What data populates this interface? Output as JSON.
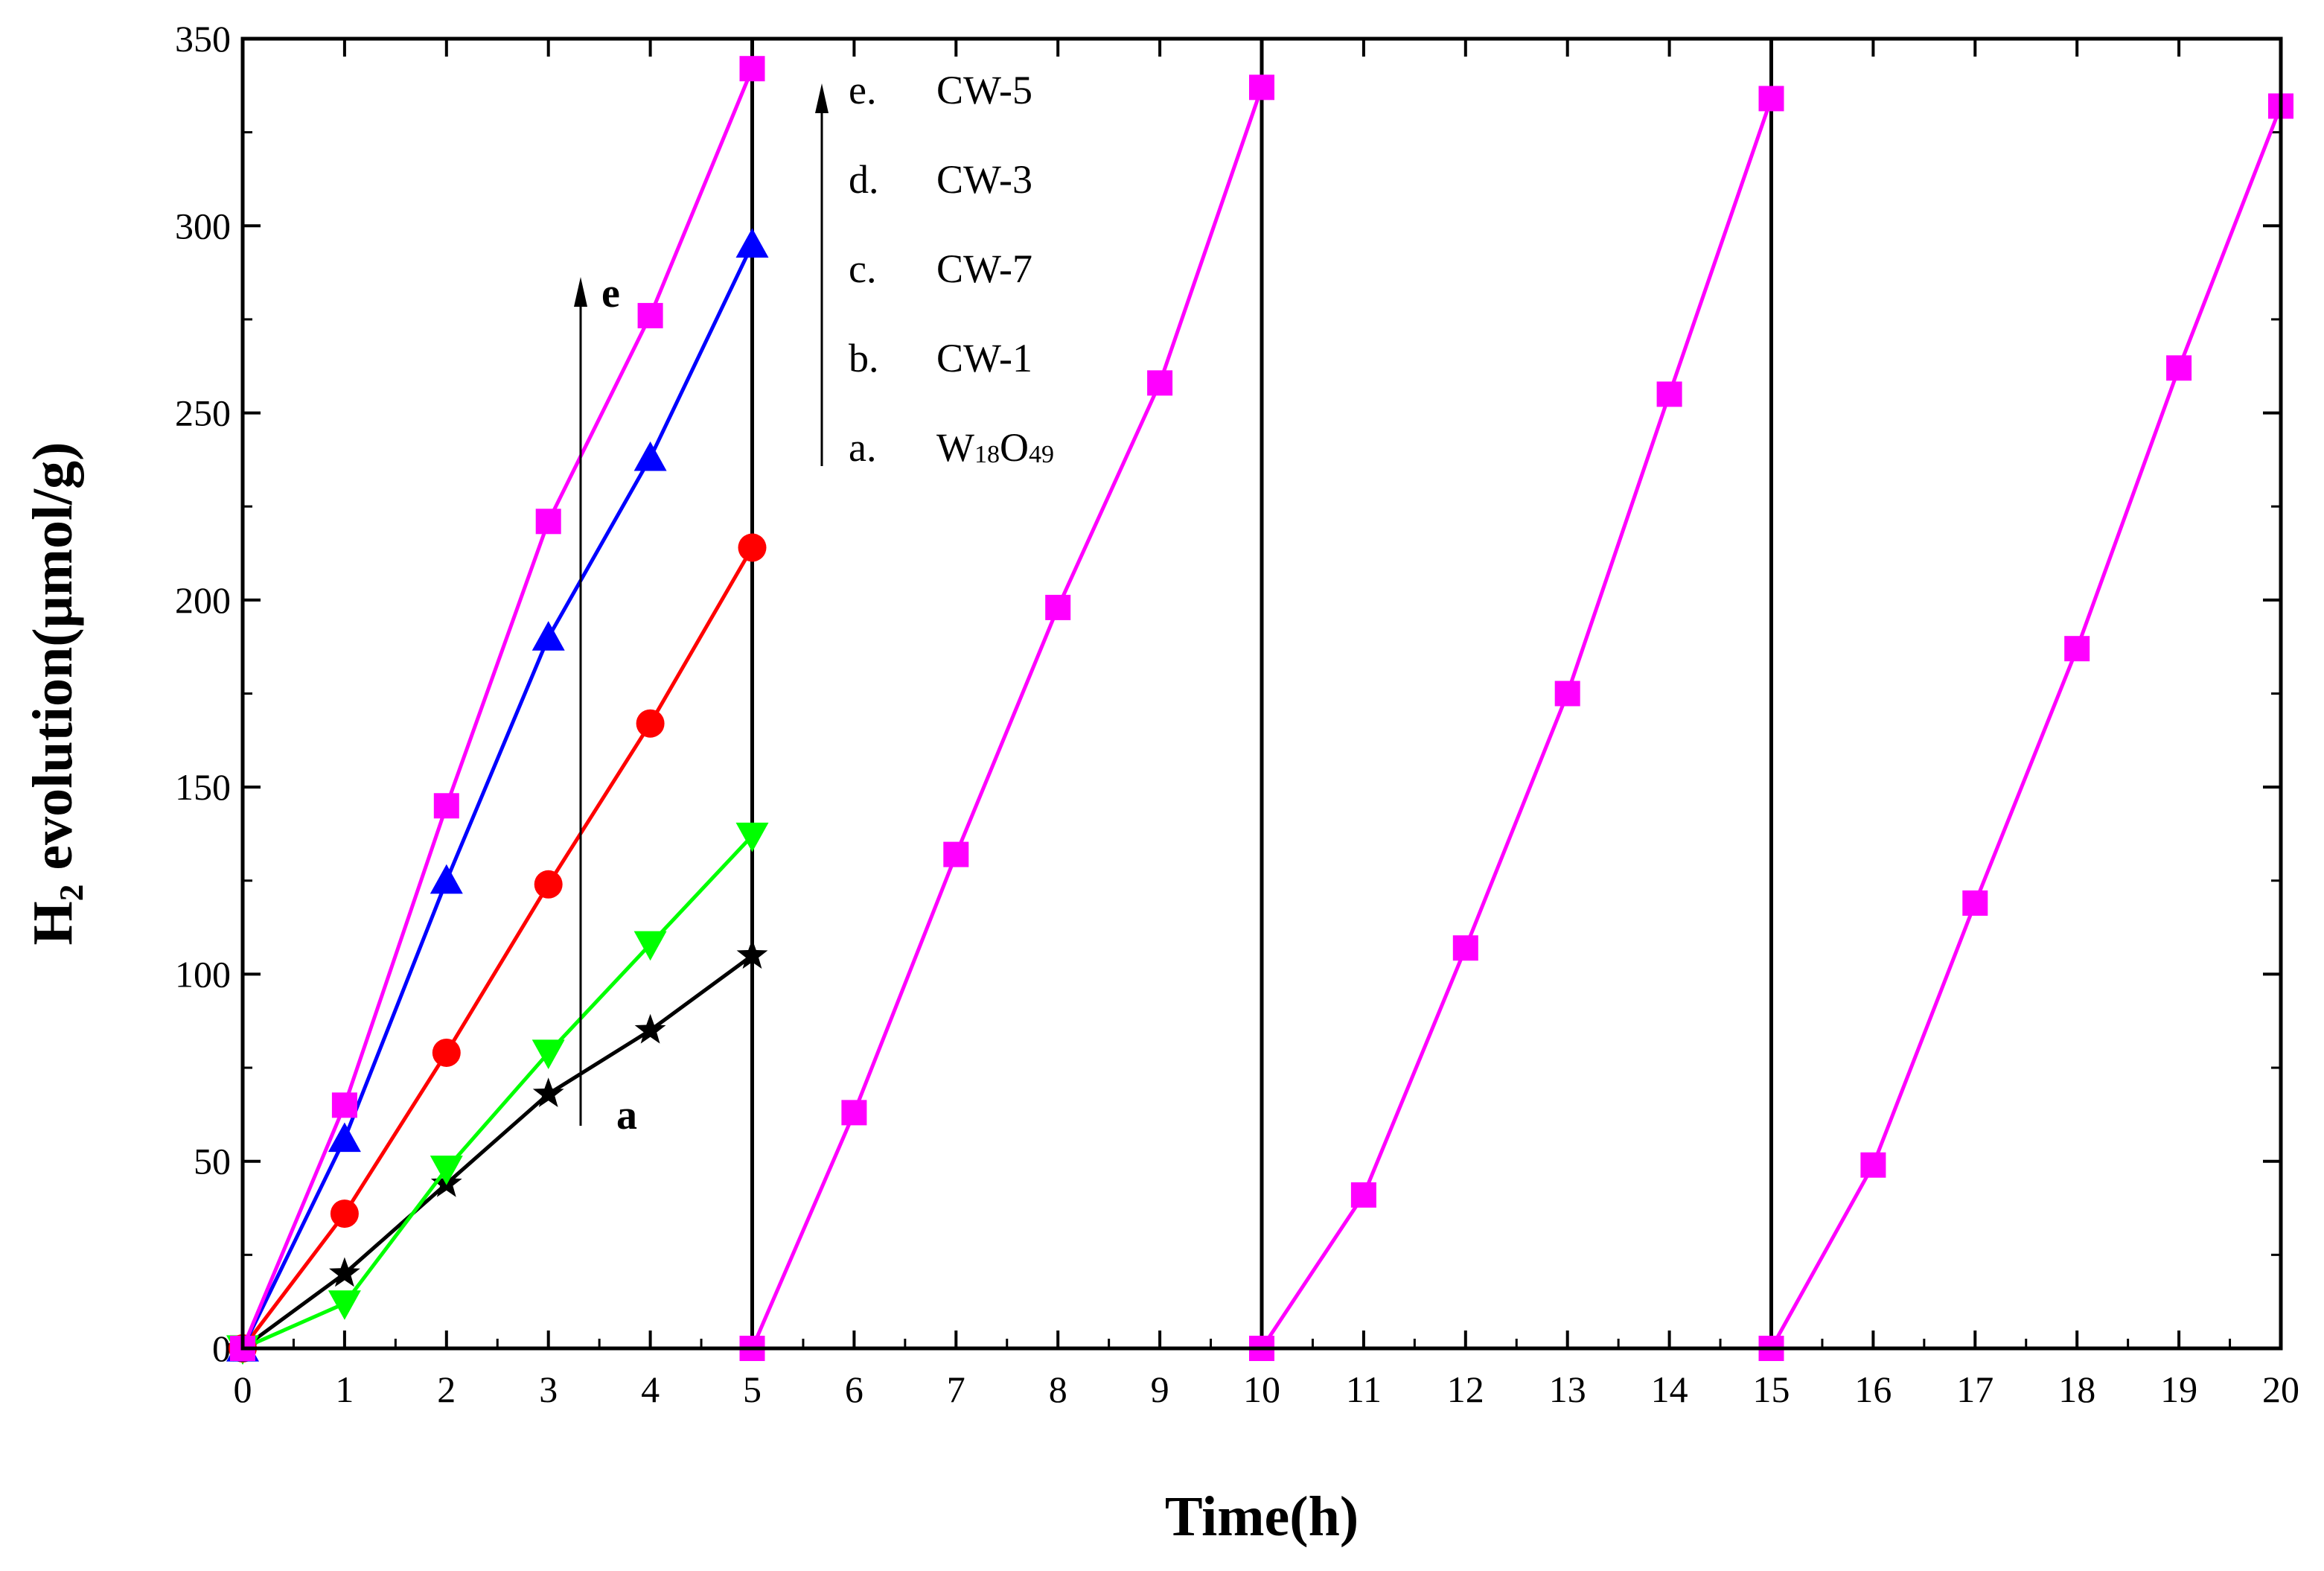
{
  "chart_data": {
    "type": "line",
    "title": "",
    "xlabel": "Time(h)",
    "ylabel": "H₂ evolution(μmol/g)",
    "xlim": [
      0,
      20
    ],
    "ylim": [
      0,
      350
    ],
    "xticks": [
      0,
      1,
      2,
      3,
      4,
      5,
      6,
      7,
      8,
      9,
      10,
      11,
      12,
      13,
      14,
      15,
      16,
      17,
      18,
      19,
      20
    ],
    "yticks": [
      0,
      50,
      100,
      150,
      200,
      250,
      300,
      350
    ],
    "cycle_dividers": [
      5,
      10,
      15
    ],
    "series": [
      {
        "key": "a",
        "name": "W18O49",
        "color": "#000000",
        "marker": "star",
        "segments": [
          {
            "x": [
              0,
              1,
              2,
              3,
              4,
              5
            ],
            "y": [
              0,
              20,
              44,
              68,
              85,
              105
            ]
          }
        ]
      },
      {
        "key": "b",
        "name": "CW-1",
        "color": "#00ff00",
        "marker": "triangle-down",
        "segments": [
          {
            "x": [
              0,
              1,
              2,
              3,
              4,
              5
            ],
            "y": [
              0,
              12,
              48,
              79,
              108,
              137
            ]
          }
        ]
      },
      {
        "key": "c",
        "name": "CW-7",
        "color": "#ff0000",
        "marker": "circle",
        "segments": [
          {
            "x": [
              0,
              1,
              2,
              3,
              4,
              5
            ],
            "y": [
              0,
              36,
              79,
              124,
              167,
              214
            ]
          }
        ]
      },
      {
        "key": "d",
        "name": "CW-3",
        "color": "#0000ff",
        "marker": "triangle-up",
        "segments": [
          {
            "x": [
              0,
              1,
              2,
              3,
              4,
              5
            ],
            "y": [
              0,
              56,
              125,
              190,
              238,
              295
            ]
          }
        ]
      },
      {
        "key": "e",
        "name": "CW-5",
        "color": "#ff00ff",
        "marker": "square",
        "segments": [
          {
            "x": [
              0,
              1,
              2,
              3,
              4,
              5
            ],
            "y": [
              0,
              65,
              145,
              221,
              276,
              342
            ]
          },
          {
            "x": [
              5,
              6,
              7,
              8,
              9,
              10
            ],
            "y": [
              0,
              63,
              132,
              198,
              258,
              337
            ]
          },
          {
            "x": [
              10,
              11,
              12,
              13,
              14,
              15
            ],
            "y": [
              0,
              41,
              107,
              175,
              255,
              334
            ]
          },
          {
            "x": [
              15,
              16,
              17,
              18,
              19,
              20
            ],
            "y": [
              0,
              49,
              119,
              187,
              262,
              332
            ]
          }
        ]
      }
    ],
    "legend": {
      "placement": "top, right of first cycle",
      "entries": [
        {
          "prefix": "e.",
          "label": "CW-5"
        },
        {
          "prefix": "d.",
          "label": "CW-3"
        },
        {
          "prefix": "c.",
          "label": "CW-7"
        },
        {
          "prefix": "b.",
          "label": "CW-1"
        },
        {
          "prefix": "a.",
          "label": "W",
          "sub1": "18",
          "mid": "O",
          "sub2": "49"
        }
      ]
    },
    "annotations": {
      "top_label": "e",
      "bottom_label": "a"
    }
  }
}
